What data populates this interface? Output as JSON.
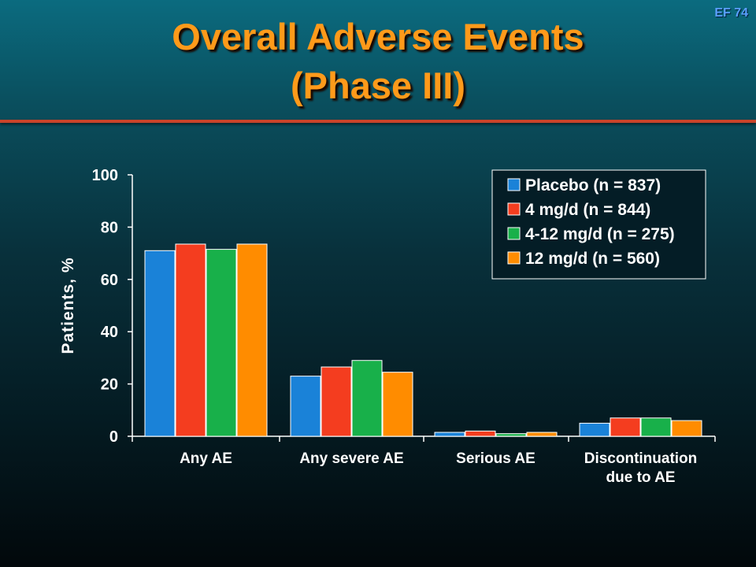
{
  "slide": {
    "id": "EF 74",
    "title_line1": "Overall Adverse Events",
    "title_line2": "(Phase III)"
  },
  "colors": {
    "title": "#ff9a1a",
    "rule": "#c8442a",
    "slide_id": "#5aa0ff"
  },
  "chart_data": {
    "type": "bar",
    "title": "",
    "ylabel": "Patients, %",
    "xlabel": "",
    "ylim": [
      0,
      100
    ],
    "yticks": [
      "0",
      "20",
      "40",
      "60",
      "80",
      "100"
    ],
    "categories": [
      [
        "Any AE"
      ],
      [
        "Any severe AE"
      ],
      [
        "Serious AE"
      ],
      [
        "Discontinuation",
        "due to AE"
      ]
    ],
    "series": [
      {
        "name": "Placebo (n = 837)",
        "color": "#1a82d8",
        "values": [
          71,
          23,
          1.5,
          5
        ]
      },
      {
        "name": "4 mg/d (n = 844)",
        "color": "#f43d1f",
        "values": [
          73.5,
          26.5,
          2,
          7
        ]
      },
      {
        "name": "4-12 mg/d (n = 275)",
        "color": "#18b04a",
        "values": [
          71.5,
          29,
          1,
          7
        ]
      },
      {
        "name": "12 mg/d (n = 560)",
        "color": "#ff8c00",
        "values": [
          73.5,
          24.5,
          1.5,
          6
        ]
      }
    ],
    "grid": false,
    "legend_position": "top-right"
  }
}
